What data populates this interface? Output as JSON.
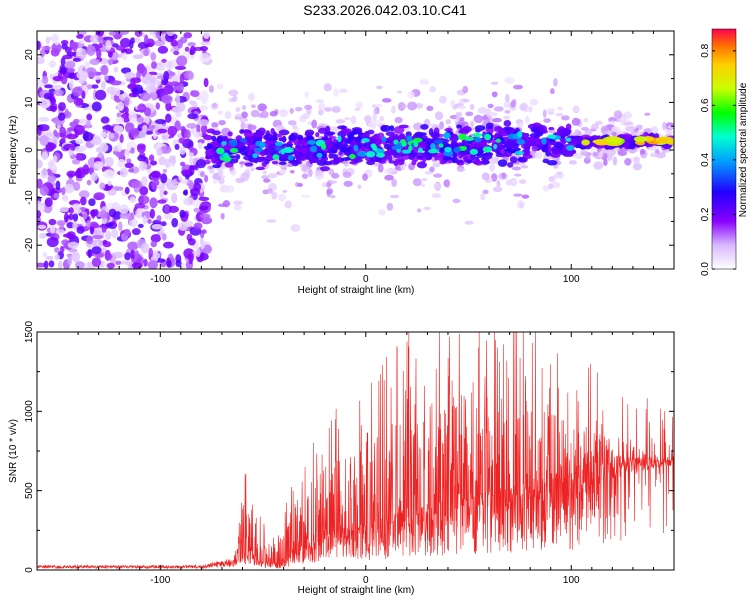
{
  "title": "S233.2026.042.03.10.C41",
  "chart_data": [
    {
      "type": "heatmap",
      "name": "spectrogram",
      "xlabel": "Height of straight line (km)",
      "ylabel": "Frequency (Hz)",
      "xlim": [
        -160,
        150
      ],
      "ylim": [
        -25,
        25
      ],
      "x_ticks": [
        -100,
        0,
        100
      ],
      "x_tick_labels": [
        "-100",
        "0",
        "100"
      ],
      "y_ticks": [
        20,
        10,
        0,
        -10,
        -20
      ],
      "y_tick_labels": [
        "20",
        "10",
        "0",
        "-10",
        "-20"
      ],
      "colorbar": {
        "label": "Normalized spectral amplitude",
        "range": [
          0,
          0.88
        ],
        "ticks": [
          0.0,
          0.2,
          0.4,
          0.6,
          0.8
        ],
        "tick_labels": [
          "0.0",
          "0.2",
          "0.4",
          "0.6",
          "0.8"
        ]
      },
      "features": [
        {
          "description": "broadband noise",
          "x_range": [
            -160,
            -77
          ],
          "freq_range": [
            -25,
            25
          ],
          "amplitude": 0.12
        },
        {
          "description": "signal band",
          "x_range": [
            -77,
            150
          ],
          "freq_center_start": 0,
          "freq_center_end": 2,
          "amplitude_max": 0.88
        }
      ]
    },
    {
      "type": "line",
      "name": "snr",
      "color": "#ee2222",
      "xlabel": "Height of straight line (km)",
      "ylabel": "SNR (10 * v/v)",
      "xlim": [
        -160,
        150
      ],
      "ylim": [
        0,
        1500
      ],
      "x_ticks": [
        -100,
        0,
        100
      ],
      "x_tick_labels": [
        "-100",
        "0",
        "100"
      ],
      "y_ticks": [
        0,
        500,
        1000,
        1500
      ],
      "y_tick_labels": [
        "0",
        "500",
        "1000",
        "1500"
      ],
      "envelope": {
        "x": [
          -160,
          -80,
          -64,
          -61,
          -59,
          -55,
          -50,
          -44,
          -40,
          -36,
          -30,
          -20,
          -10,
          0,
          10,
          20,
          30,
          40,
          50,
          60,
          70,
          80,
          90,
          100,
          110,
          120,
          130,
          140,
          150
        ],
        "base": [
          10,
          10,
          20,
          150,
          120,
          80,
          40,
          30,
          40,
          80,
          110,
          160,
          180,
          200,
          220,
          260,
          280,
          300,
          320,
          340,
          360,
          380,
          400,
          420,
          500,
          560,
          600,
          640,
          660
        ],
        "peak": [
          30,
          30,
          80,
          550,
          450,
          300,
          200,
          150,
          250,
          400,
          500,
          650,
          720,
          800,
          900,
          1000,
          1050,
          1100,
          1100,
          1100,
          1050,
          1050,
          1000,
          950,
          900,
          850,
          800,
          760,
          720
        ]
      }
    }
  ]
}
